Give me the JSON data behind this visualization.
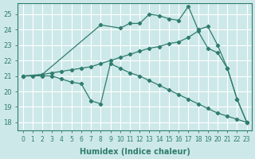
{
  "background_color": "#cde8e8",
  "grid_color": "#ffffff",
  "line_color": "#2e7d6e",
  "xlabel": "Humidex (Indice chaleur)",
  "ylim": [
    17.5,
    25.7
  ],
  "xlim": [
    -0.5,
    23.5
  ],
  "yticks": [
    18,
    19,
    20,
    21,
    22,
    23,
    24,
    25
  ],
  "xticks": [
    0,
    1,
    2,
    3,
    4,
    5,
    6,
    7,
    8,
    9,
    10,
    11,
    12,
    13,
    14,
    15,
    16,
    17,
    18,
    19,
    20,
    21,
    22,
    23
  ],
  "line_top": {
    "x": [
      0,
      2,
      8,
      10,
      11,
      12,
      13,
      14,
      15,
      16,
      17,
      18,
      19,
      20,
      21,
      22,
      23
    ],
    "y": [
      21.0,
      21.1,
      24.3,
      24.1,
      24.4,
      24.4,
      25.0,
      24.9,
      24.7,
      24.6,
      25.5,
      24.0,
      24.2,
      23.0,
      21.5,
      19.5,
      18.0
    ]
  },
  "line_mid": {
    "x": [
      0,
      1,
      2,
      3,
      4,
      5,
      6,
      7,
      8,
      9,
      10,
      11,
      12,
      13,
      14,
      15,
      16,
      17,
      18,
      19,
      20,
      21,
      22,
      23
    ],
    "y": [
      21.0,
      21.0,
      21.1,
      21.2,
      21.3,
      21.4,
      21.5,
      21.6,
      21.8,
      22.0,
      22.2,
      22.4,
      22.6,
      22.8,
      22.9,
      23.1,
      23.2,
      23.5,
      23.9,
      22.8,
      22.5,
      21.5,
      19.5,
      18.0
    ]
  },
  "line_bot": {
    "x": [
      0,
      2,
      3,
      4,
      5,
      6,
      7,
      8,
      9,
      10,
      11,
      12,
      13,
      14,
      15,
      16,
      17,
      18,
      19,
      20,
      21,
      22,
      23
    ],
    "y": [
      21.0,
      21.0,
      21.0,
      20.8,
      20.6,
      20.5,
      19.4,
      19.2,
      21.8,
      21.5,
      21.2,
      21.0,
      20.7,
      20.4,
      20.1,
      19.8,
      19.5,
      19.2,
      18.9,
      18.6,
      18.4,
      18.2,
      18.0
    ]
  }
}
